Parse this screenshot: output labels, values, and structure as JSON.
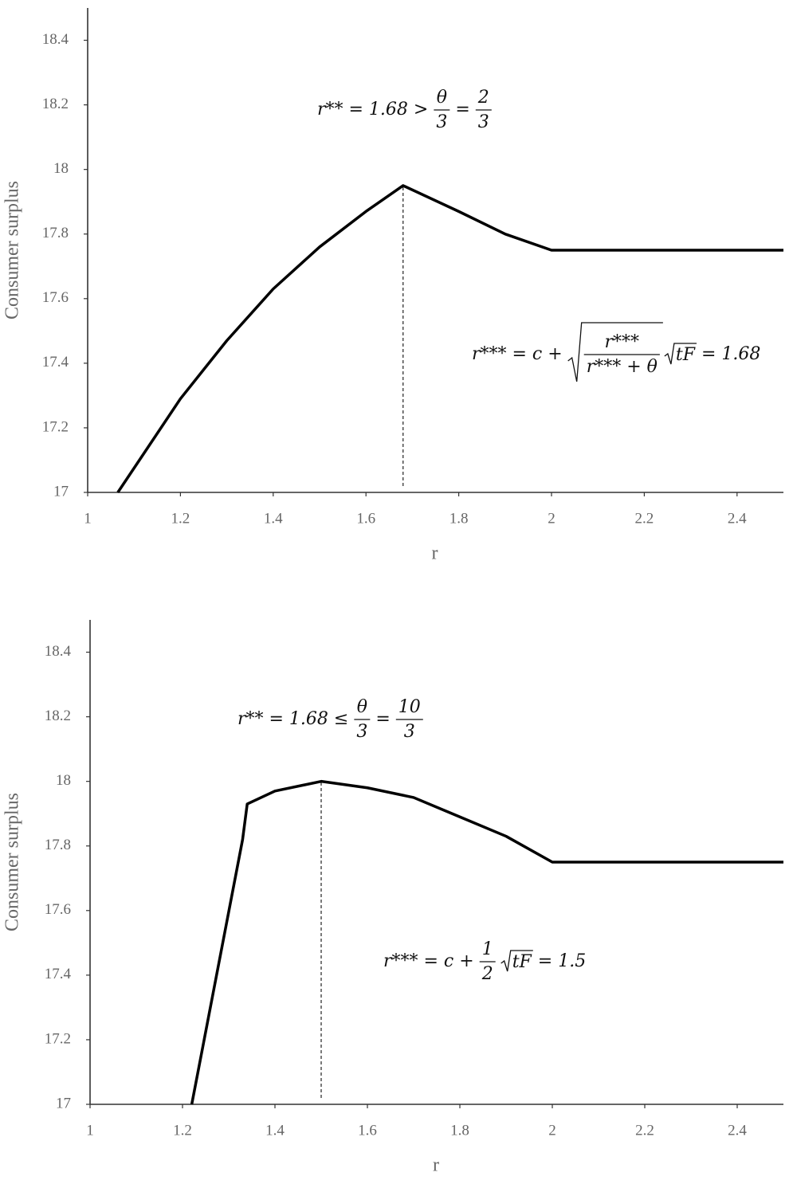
{
  "chart_data": [
    {
      "type": "line",
      "x": [
        1.065,
        1.2,
        1.3,
        1.4,
        1.5,
        1.6,
        1.68,
        1.8,
        1.9,
        2,
        2.5
      ],
      "values": [
        17,
        17.29,
        17.47,
        17.63,
        17.76,
        17.87,
        17.95,
        17.87,
        17.8,
        17.75,
        17.75
      ],
      "color": "#000000",
      "xlim": [
        1,
        2.5
      ],
      "ylim": [
        17,
        18.5
      ],
      "xticks": [
        1,
        1.2,
        1.4,
        1.6,
        1.8,
        2,
        2.2,
        2.4
      ],
      "yticks": [
        17,
        17.2,
        17.4,
        17.6,
        17.8,
        18,
        18.2,
        18.4
      ],
      "xlabel": "r",
      "ylabel": "Consumer surplus",
      "vline_x": 1.68,
      "annotations": [
        [
          {
            "text": "r** = 1.68 >"
          },
          {
            "num": "θ",
            "den": "3"
          },
          {
            "text": "="
          },
          {
            "num": "2",
            "den": "3"
          }
        ],
        [
          {
            "text": "r*** = c +"
          },
          {
            "sqrt": {
              "num": "r***",
              "den": "r*** + θ"
            }
          },
          {
            "sqrt": "tF"
          },
          {
            "text": "= 1.68"
          }
        ]
      ]
    },
    {
      "type": "line",
      "x": [
        1.22,
        1.33,
        1.34,
        1.4,
        1.5,
        1.6,
        1.7,
        1.8,
        1.9,
        2,
        2.5
      ],
      "values": [
        17,
        17.82,
        17.93,
        17.97,
        18,
        17.98,
        17.95,
        17.89,
        17.83,
        17.75,
        17.75
      ],
      "color": "#000000",
      "xlim": [
        1,
        2.5
      ],
      "ylim": [
        17,
        18.5
      ],
      "xticks": [
        1,
        1.2,
        1.4,
        1.6,
        1.8,
        2,
        2.2,
        2.4
      ],
      "yticks": [
        17,
        17.2,
        17.4,
        17.6,
        17.8,
        18,
        18.2,
        18.4
      ],
      "xlabel": "r",
      "ylabel": "Consumer surplus",
      "vline_x": 1.5,
      "annotations": [
        [
          {
            "text": "r** = 1.68 ≤"
          },
          {
            "num": "θ",
            "den": "3"
          },
          {
            "text": "="
          },
          {
            "num": "10",
            "den": "3"
          }
        ],
        [
          {
            "text": "r*** = c +"
          },
          {
            "num": "1",
            "den": "2"
          },
          {
            "sqrt": "tF"
          },
          {
            "text": "= 1.5"
          }
        ]
      ]
    }
  ]
}
